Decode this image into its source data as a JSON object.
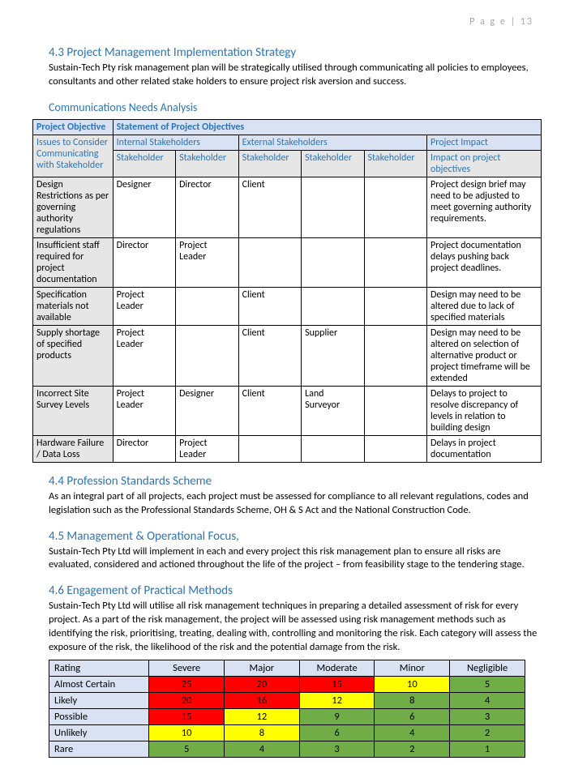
{
  "page_header": "P a g e  | 13",
  "s43": {
    "heading": "4.3 Project Management Implementation Strategy",
    "text": "Sustain-Tech Pty risk management plan will be strategically utilised through communicating all policies to employees, consultants and other related stake holders to ensure project risk aversion and success."
  },
  "comms_heading": "Communications Needs Analysis",
  "comms": {
    "head_objective": "Project Objective",
    "head_statement": "Statement of Project Objectives",
    "head_internal": "Internal Stakeholders",
    "head_external": "External Stakeholders",
    "head_impact": "Project Impact",
    "sub_issues": "Issues to Consider Communicating with Stakeholder",
    "sub_stakeholder": "Stakeholder",
    "sub_impact": "Impact on project objectives",
    "rows": [
      {
        "issue": "Design Restrictions as per governing authority regulations",
        "s1": "Designer",
        "s2": "Director",
        "s3": "Client",
        "s4": "",
        "s5": "",
        "impact": "Project design brief may need to be adjusted to meet governing authority requirements."
      },
      {
        "issue": "Insufficient staff required for project documentation",
        "s1": "Director",
        "s2": "Project Leader",
        "s3": "",
        "s4": "",
        "s5": "",
        "impact": "Project documentation delays pushing back project deadlines."
      },
      {
        "issue": "Specification materials not available",
        "s1": "Project Leader",
        "s2": "",
        "s3": "Client",
        "s4": "",
        "s5": "",
        "impact": "Design may need to be altered due to lack of specified materials"
      },
      {
        "issue": "Supply shortage of specified products",
        "s1": "Project Leader",
        "s2": "",
        "s3": "Client",
        "s4": "Supplier",
        "s5": "",
        "impact": "Design may need to be altered on selection of alternative product or project timeframe will be extended"
      },
      {
        "issue": "Incorrect Site Survey Levels",
        "s1": "Project Leader",
        "s2": "Designer",
        "s3": "Client",
        "s4": "Land Surveyor",
        "s5": "",
        "impact": "Delays to project to resolve discrepancy of levels in relation to building design"
      },
      {
        "issue": "Hardware Failure / Data Loss",
        "s1": "Director",
        "s2": "Project Leader",
        "s3": "",
        "s4": "",
        "s5": "",
        "impact": "Delays in project documentation"
      }
    ]
  },
  "s44": {
    "heading": "4.4 Profession Standards Scheme",
    "text": "As an integral part of all projects, each project must be assessed for compliance to all relevant regulations, codes and legislation such as the Professional Standards Scheme, OH & S Act and the National Construction Code."
  },
  "s45": {
    "heading": "4.5 Management & Operational Focus,",
    "text": "Sustain-Tech Pty Ltd will implement in each and every project this risk management plan to ensure all risks are evaluated, considered and actioned throughout the life of the project – from feasibility stage to the tendering stage."
  },
  "s46": {
    "heading": "4.6 Engagement of Practical Methods",
    "text": "Sustain-Tech Pty Ltd will utilise all risk management techniques in preparing a detailed assessment of risk for every project. As a part of the risk management, the project will be assessed using risk management methods such as identifying the risk, prioritising, treating, dealing with, controlling and monitoring the risk. Each category will assess the exposure of the risk, the likelihood of the risk and the potential damage from the risk."
  },
  "risk": {
    "head_rating": "Rating",
    "columns": [
      "Severe",
      "Major",
      "Moderate",
      "Minor",
      "Negligible"
    ],
    "rows": [
      {
        "label": "Almost Certain",
        "cells": [
          {
            "v": "25",
            "c": "#ff0000"
          },
          {
            "v": "20",
            "c": "#ff0000"
          },
          {
            "v": "15",
            "c": "#ff0000"
          },
          {
            "v": "10",
            "c": "#ffff00"
          },
          {
            "v": "5",
            "c": "#70ad47"
          }
        ]
      },
      {
        "label": "Likely",
        "cells": [
          {
            "v": "20",
            "c": "#ff0000"
          },
          {
            "v": "16",
            "c": "#ff0000"
          },
          {
            "v": "12",
            "c": "#ffff00"
          },
          {
            "v": "8",
            "c": "#70ad47"
          },
          {
            "v": "4",
            "c": "#70ad47"
          }
        ]
      },
      {
        "label": "Possible",
        "cells": [
          {
            "v": "15",
            "c": "#ff0000"
          },
          {
            "v": "12",
            "c": "#ffff00"
          },
          {
            "v": "9",
            "c": "#70ad47"
          },
          {
            "v": "6",
            "c": "#70ad47"
          },
          {
            "v": "3",
            "c": "#70ad47"
          }
        ]
      },
      {
        "label": "Unlikely",
        "cells": [
          {
            "v": "10",
            "c": "#ffff00"
          },
          {
            "v": "8",
            "c": "#ffff00"
          },
          {
            "v": "6",
            "c": "#70ad47"
          },
          {
            "v": "4",
            "c": "#70ad47"
          },
          {
            "v": "2",
            "c": "#70ad47"
          }
        ]
      },
      {
        "label": "Rare",
        "cells": [
          {
            "v": "5",
            "c": "#70ad47"
          },
          {
            "v": "4",
            "c": "#70ad47"
          },
          {
            "v": "3",
            "c": "#70ad47"
          },
          {
            "v": "2",
            "c": "#70ad47"
          },
          {
            "v": "1",
            "c": "#70ad47"
          }
        ]
      }
    ]
  }
}
